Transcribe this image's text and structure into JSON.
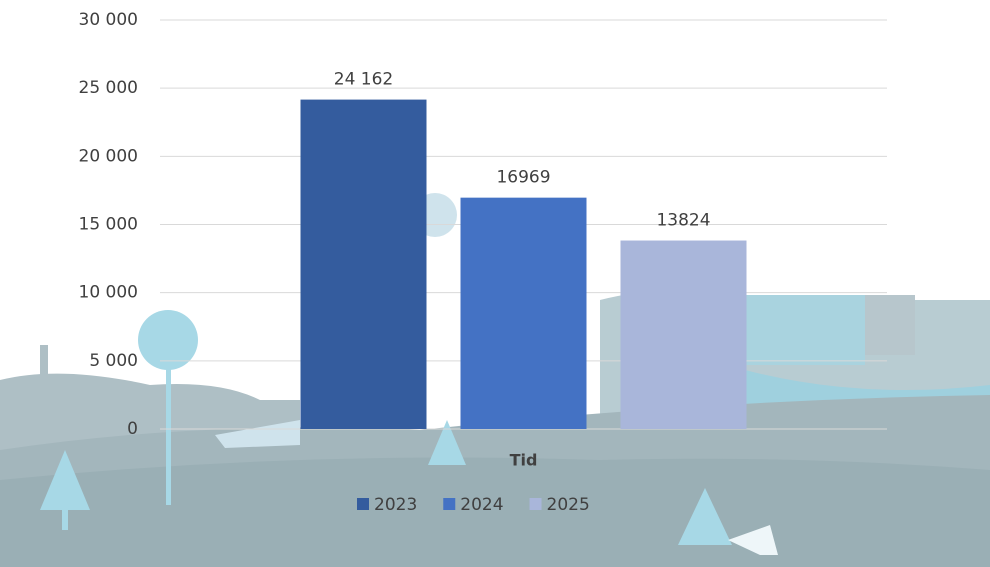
{
  "chart_data": {
    "type": "bar",
    "x_label": "Tid",
    "categories": [
      null
    ],
    "series": [
      {
        "name": "2023",
        "color": "#345c9e",
        "values": [
          24162
        ],
        "value_labels": [
          "24 162"
        ]
      },
      {
        "name": "2024",
        "color": "#4472c4",
        "values": [
          16969
        ]
      },
      {
        "name": "2025",
        "color": "#a9b6da",
        "values": [
          13824
        ]
      }
    ],
    "ylim": [
      0,
      30000
    ],
    "yticks": [
      0,
      {
        "value": 5000,
        "label": "5 000"
      },
      {
        "value": 10000,
        "label": "10 000"
      },
      {
        "value": 15000,
        "label": "15 000"
      },
      {
        "value": 20000,
        "label": "20 000"
      },
      {
        "value": 25000,
        "label": "25 000"
      },
      {
        "value": 30000,
        "label": "30 000"
      }
    ],
    "grid": true,
    "legend": "bottom"
  }
}
